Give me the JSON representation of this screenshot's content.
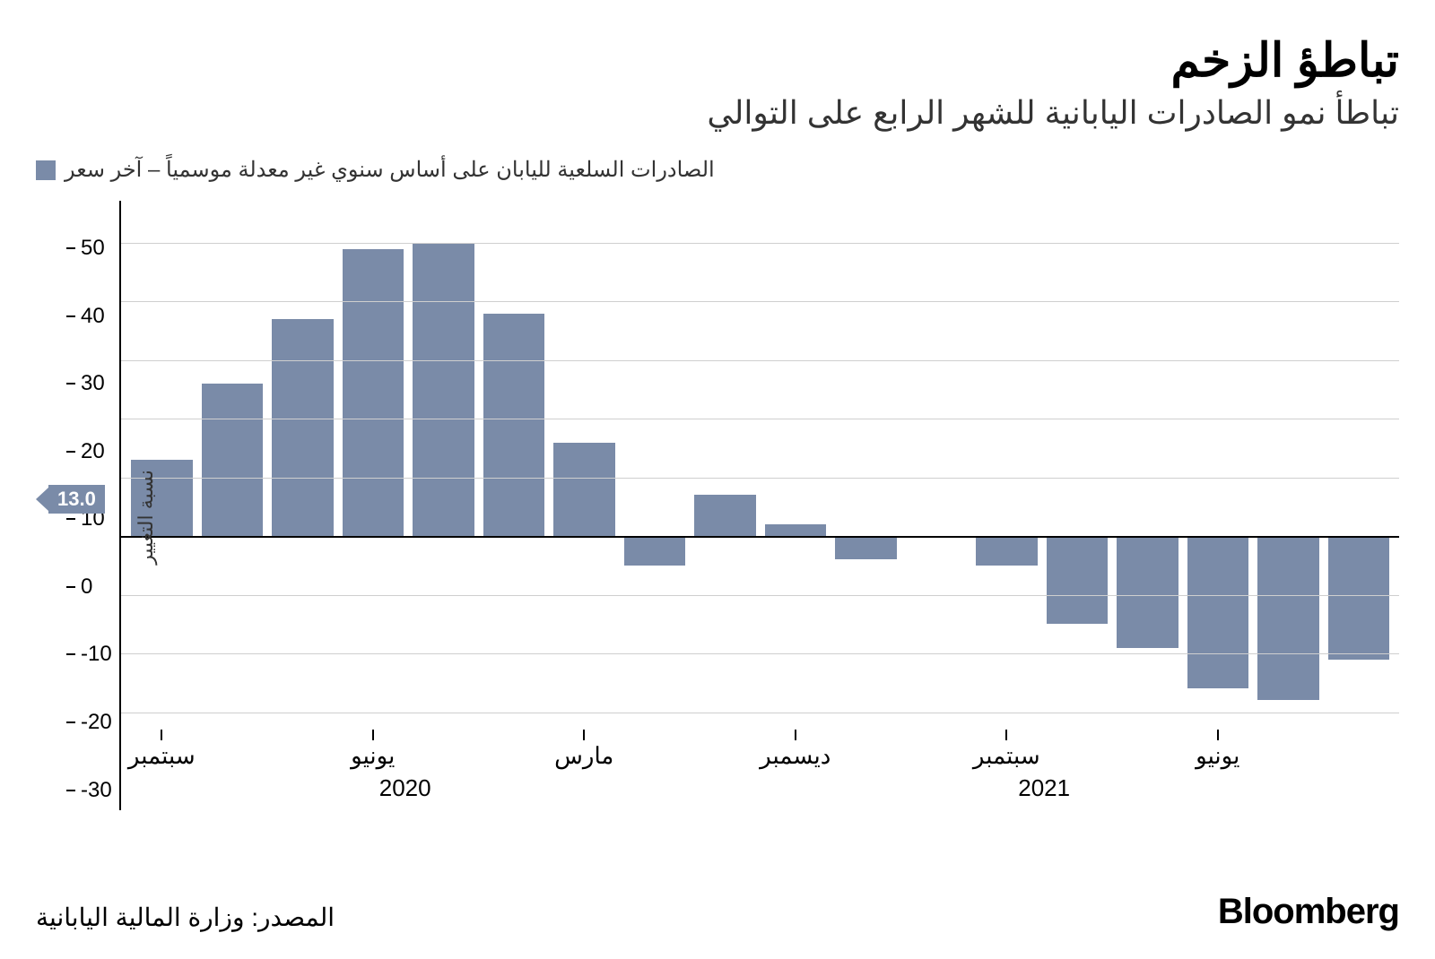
{
  "title": "تباطؤ الزخم",
  "subtitle": "تباطأ نمو الصادرات اليابانية للشهر الرابع على التوالي",
  "legend": {
    "label": "الصادرات السلعية لليابان على أساس سنوي غير معدلة موسمياً – آخر سعر",
    "swatch_color": "#7a8ba8"
  },
  "chart": {
    "type": "bar",
    "bar_color": "#7a8ba8",
    "background_color": "#ffffff",
    "grid_color": "#cfcfcf",
    "baseline_color": "#000000",
    "axis_color": "#000000",
    "ylim": [
      -33,
      57
    ],
    "yticks": [
      -30,
      -20,
      -10,
      0,
      10,
      20,
      30,
      40,
      50
    ],
    "y_axis_title": "نسبة التغيير",
    "values": [
      -21,
      -28,
      -26,
      -19,
      -15,
      -5,
      0,
      -4,
      2,
      7,
      -5,
      16,
      38,
      50,
      49,
      37,
      26,
      13
    ],
    "callout": {
      "value": "13.0",
      "at_index": 17,
      "bg": "#7a8ba8",
      "text_color": "#ffffff"
    },
    "x_month_labels": [
      {
        "index": 2,
        "label": "يونيو"
      },
      {
        "index": 5,
        "label": "سبتمبر"
      },
      {
        "index": 8,
        "label": "ديسمبر"
      },
      {
        "index": 11,
        "label": "مارس"
      },
      {
        "index": 14,
        "label": "يونيو"
      },
      {
        "index": 17,
        "label": "سبتمبر"
      }
    ],
    "x_year_labels": [
      {
        "between_indices": [
          3,
          4
        ],
        "label": "2020"
      },
      {
        "between_indices": [
          12,
          13
        ],
        "label": "2021"
      }
    ],
    "bar_gap_ratio": 0.14,
    "label_fontsize": 26,
    "tick_fontsize": 24
  },
  "footer": {
    "brand": "Bloomberg",
    "source": "المصدر: وزارة المالية اليابانية"
  }
}
